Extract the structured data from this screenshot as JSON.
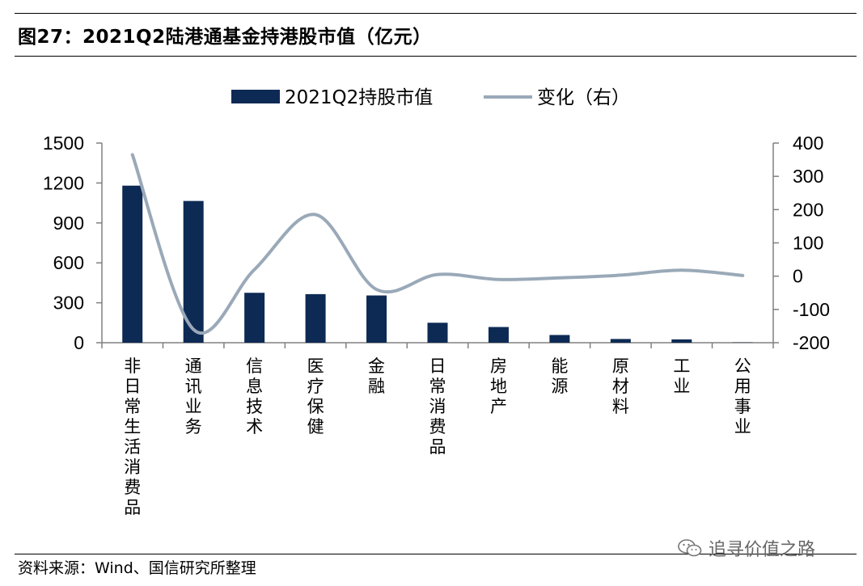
{
  "figure_title": "图27：2021Q2陆港通基金持港股市值（亿元）",
  "source": "资料来源：Wind、国信研究所整理",
  "watermark": "追寻价值之路",
  "colors": {
    "bar": "#0d2a54",
    "line": "#9aa9b8",
    "axis": "#808080"
  },
  "chart_data": {
    "type": "bar",
    "categories": [
      "非日常生活消费品",
      "通讯业务",
      "信息技术",
      "医疗保健",
      "金融",
      "日常消费品",
      "房地产",
      "能源",
      "原材料",
      "工业",
      "公用事业"
    ],
    "series": [
      {
        "name": "2021Q2持股市值",
        "type": "bar",
        "axis": "left",
        "values": [
          1180,
          1065,
          375,
          365,
          355,
          150,
          118,
          58,
          28,
          25,
          2
        ]
      },
      {
        "name": "变化（右）",
        "type": "line",
        "axis": "right",
        "values": [
          365,
          -160,
          20,
          185,
          -40,
          5,
          -10,
          -5,
          3,
          18,
          2
        ]
      }
    ],
    "y_left": {
      "ylim": [
        0,
        1500
      ],
      "ticks": [
        "1500",
        "1200",
        "900",
        "600",
        "300",
        "0"
      ]
    },
    "y_right": {
      "ylim": [
        -200,
        400
      ],
      "ticks": [
        "400",
        "300",
        "200",
        "100",
        "0",
        "-100",
        "-200"
      ]
    },
    "legend_position": "top-center",
    "grid": false
  }
}
